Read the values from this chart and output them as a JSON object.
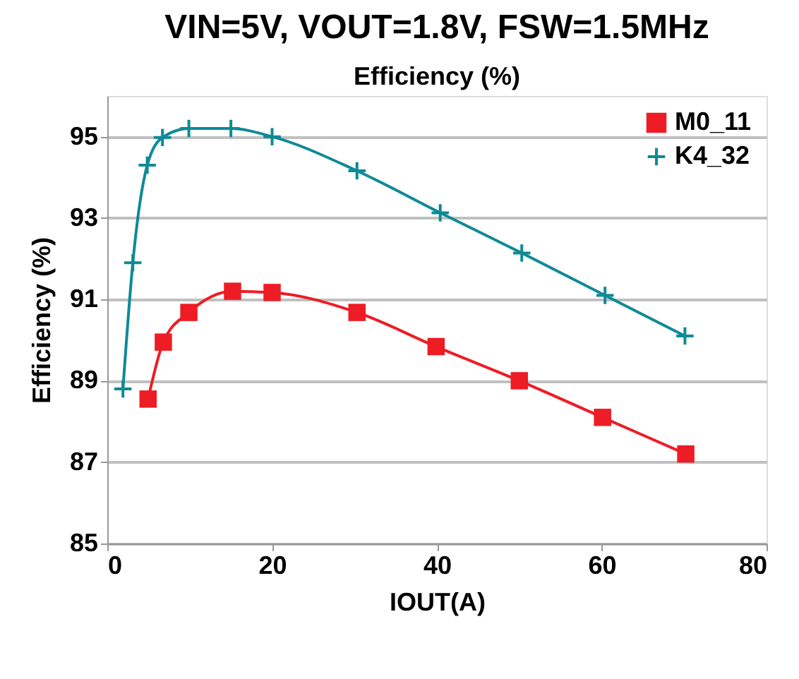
{
  "chart_data": {
    "type": "line",
    "title": "VIN=5V, VOUT=1.8V, FSW=1.5MHz",
    "subtitle": "Efficiency (%)",
    "xlabel": "IOUT(A)",
    "ylabel": "Efficiency (%)",
    "xlim": [
      0,
      80
    ],
    "xticks": [
      0,
      20,
      40,
      60,
      80
    ],
    "ylim": [
      85,
      96
    ],
    "yticks": [
      85,
      87,
      89,
      91,
      93,
      95
    ],
    "grid": "y",
    "legend": "top right",
    "series": [
      {
        "name": "M0_11",
        "color": "#ee1c25",
        "marker": "square",
        "x": [
          4.95,
          6.8,
          9.9,
          15.2,
          20,
          30.3,
          39.9,
          50,
          60.1,
          70.2
        ],
        "values": [
          88.55,
          89.95,
          90.68,
          91.2,
          91.17,
          90.68,
          89.84,
          89.0,
          88.1,
          87.2
        ]
      },
      {
        "name": "K4_32",
        "color": "#0e8a96",
        "marker": "cross",
        "x": [
          1.9,
          3.1,
          4.85,
          6.7,
          9.9,
          15.0,
          20,
          30.3,
          40.4,
          50.3,
          60.4,
          70.1
        ],
        "values": [
          88.8,
          91.9,
          94.3,
          94.98,
          95.2,
          95.2,
          95.0,
          94.16,
          93.13,
          92.14,
          91.1,
          90.1
        ]
      }
    ]
  }
}
